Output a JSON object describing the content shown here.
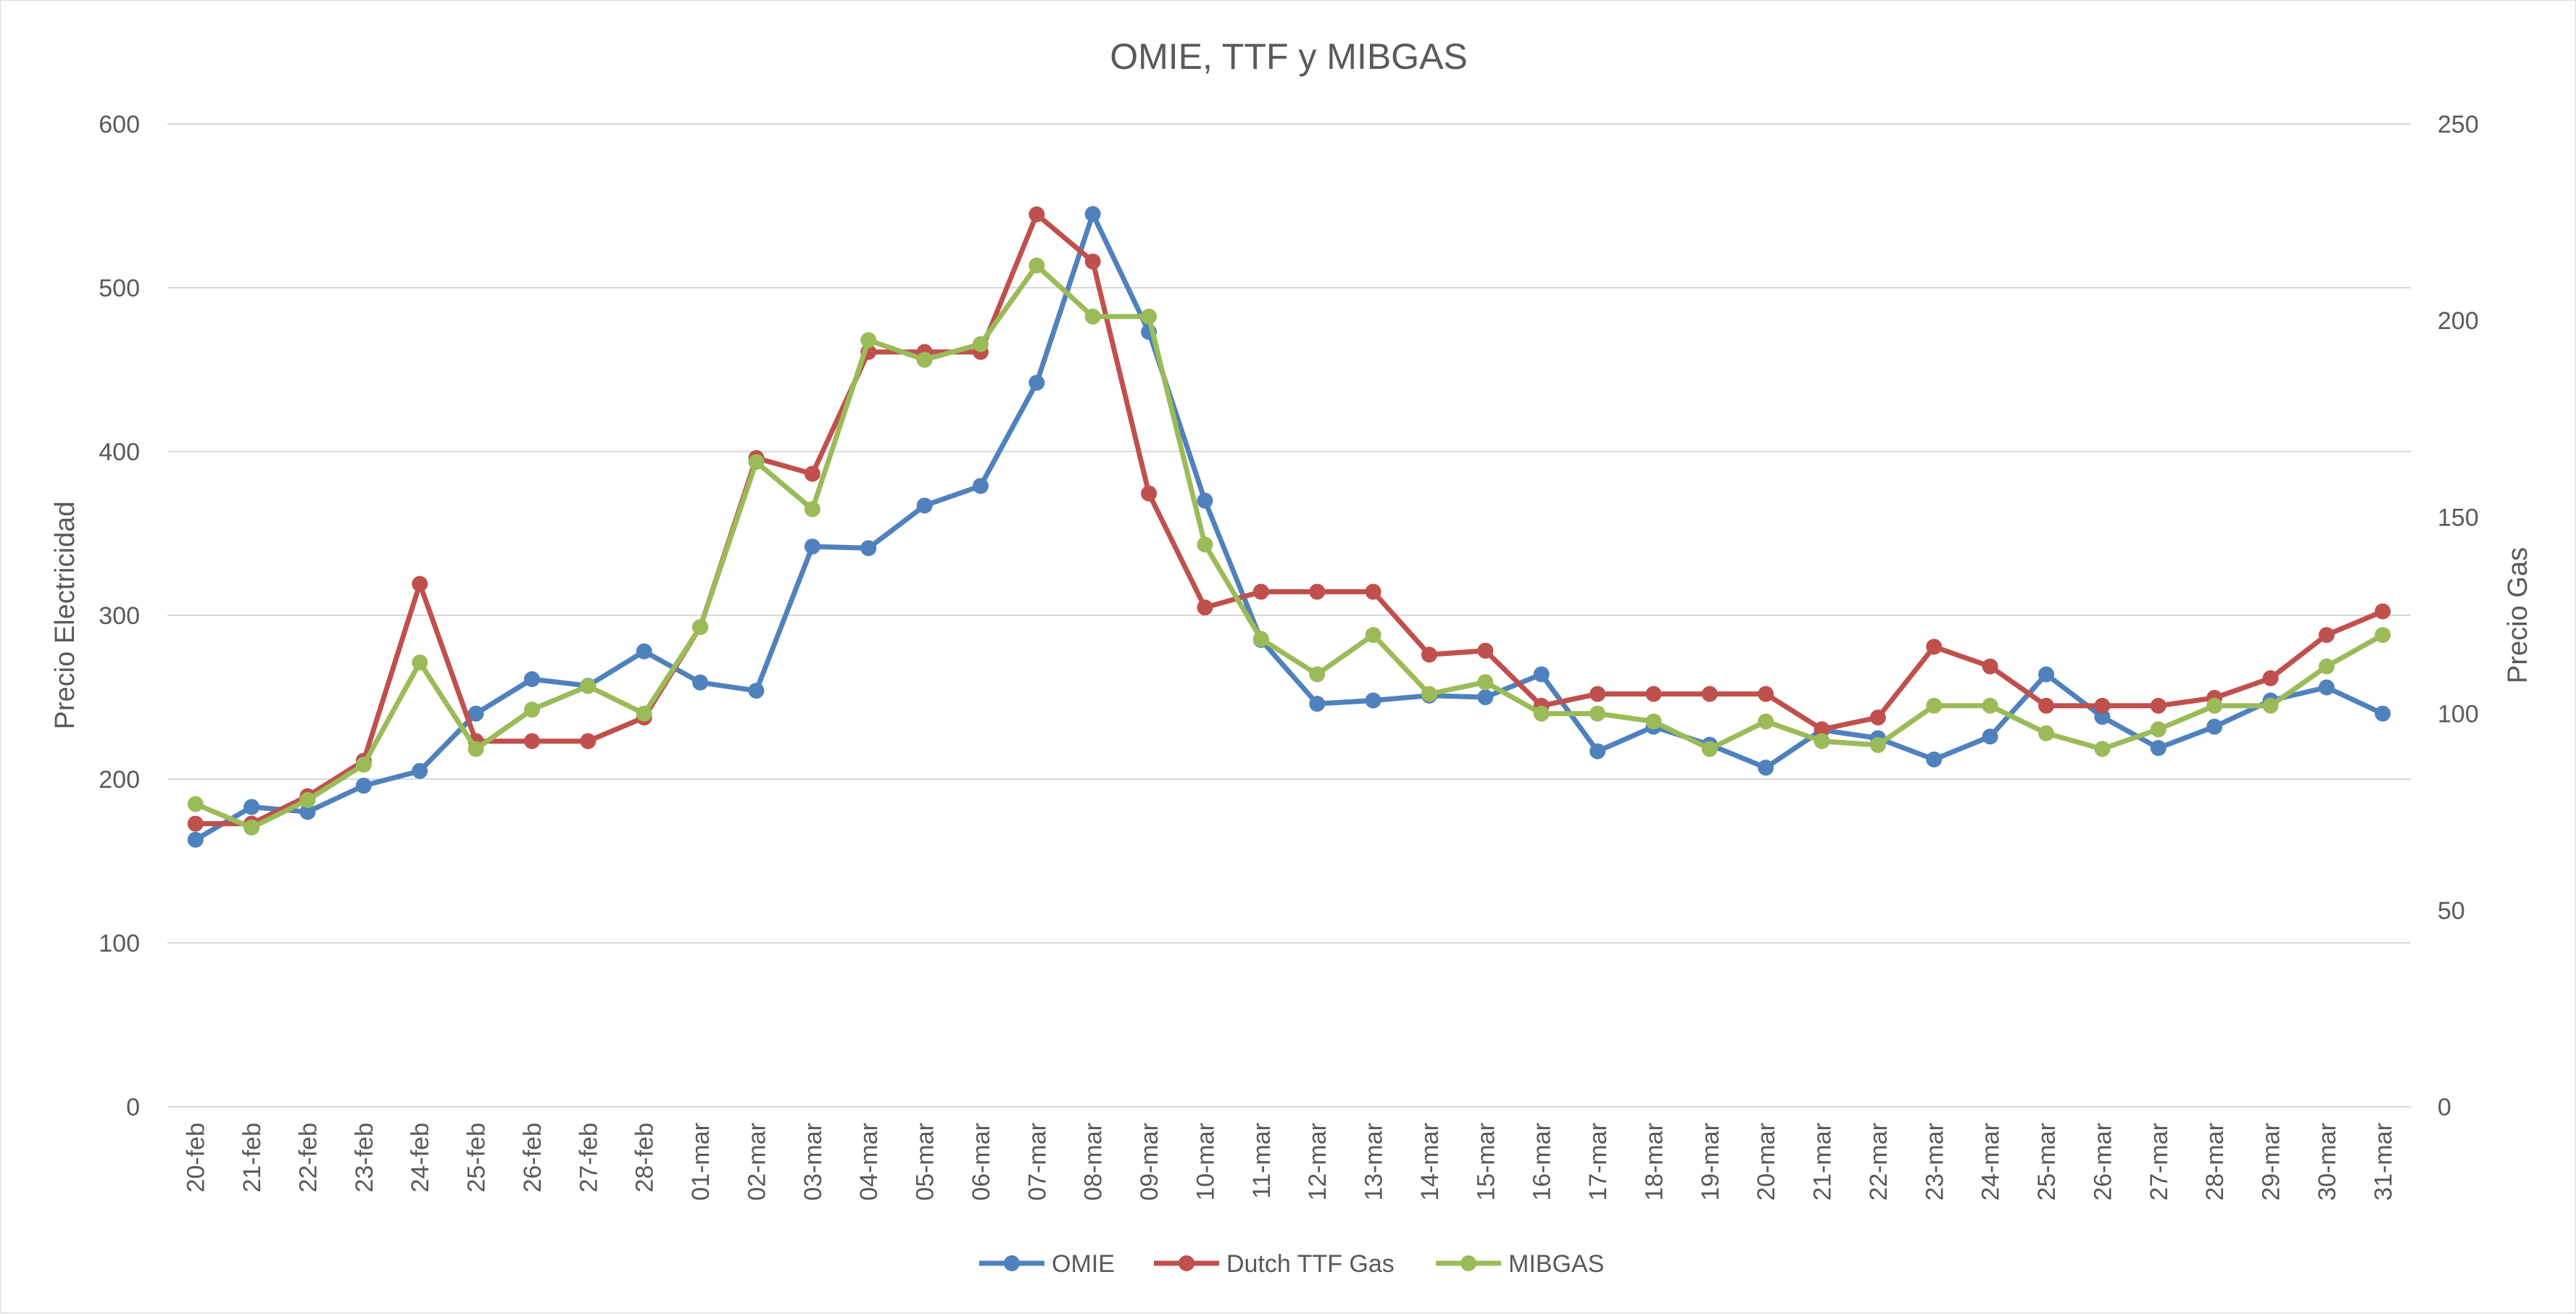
{
  "chart_data": {
    "type": "line",
    "title": "OMIE, TTF y MIBGAS",
    "ylabel": "Precio Electricidad",
    "y2label": "Precio Gas",
    "ylim": [
      0,
      600
    ],
    "y2lim": [
      0,
      250
    ],
    "yticks": [
      "0",
      "100",
      "200",
      "300",
      "400",
      "500",
      "600"
    ],
    "y2ticks": [
      "0",
      "50",
      "100",
      "150",
      "200",
      "250"
    ],
    "grid": true,
    "legend_position": "bottom",
    "categories": [
      "20-feb",
      "21-feb",
      "22-feb",
      "23-feb",
      "24-feb",
      "25-feb",
      "26-feb",
      "27-feb",
      "28-feb",
      "01-mar",
      "02-mar",
      "03-mar",
      "04-mar",
      "05-mar",
      "06-mar",
      "07-mar",
      "08-mar",
      "09-mar",
      "10-mar",
      "11-mar",
      "12-mar",
      "13-mar",
      "14-mar",
      "15-mar",
      "16-mar",
      "17-mar",
      "18-mar",
      "19-mar",
      "20-mar",
      "21-mar",
      "22-mar",
      "23-mar",
      "24-mar",
      "25-mar",
      "26-mar",
      "27-mar",
      "28-mar",
      "29-mar",
      "30-mar",
      "31-mar"
    ],
    "series": [
      {
        "name": "OMIE",
        "axis": "primary",
        "color": "#4F81BD",
        "values": [
          163,
          183,
          180,
          196,
          205,
          240,
          261,
          257,
          278,
          259,
          254,
          342,
          341,
          367,
          379,
          442,
          545,
          473,
          370,
          285,
          246,
          248,
          251,
          250,
          264,
          217,
          232,
          221,
          207,
          230,
          225,
          212,
          226,
          264,
          238,
          219,
          232,
          248,
          256,
          240
        ]
      },
      {
        "name": "Dutch TTF Gas",
        "axis": "secondary",
        "color": "#C0504D",
        "values": [
          72,
          72,
          79,
          88,
          133,
          93,
          93,
          93,
          99,
          122,
          165,
          161,
          192,
          192,
          192,
          227,
          215,
          156,
          127,
          131,
          131,
          131,
          115,
          116,
          102,
          105,
          105,
          105,
          105,
          96,
          99,
          117,
          112,
          102,
          102,
          102,
          104,
          109,
          120,
          126
        ]
      },
      {
        "name": "MIBGAS",
        "axis": "secondary",
        "color": "#9BBB59",
        "values": [
          77,
          71,
          78,
          87,
          113,
          91,
          101,
          107,
          100,
          122,
          164,
          152,
          195,
          190,
          194,
          214,
          201,
          201,
          143,
          119,
          110,
          120,
          105,
          108,
          100,
          100,
          98,
          91,
          98,
          93,
          92,
          102,
          102,
          95,
          91,
          96,
          102,
          102,
          112,
          120
        ]
      }
    ]
  }
}
